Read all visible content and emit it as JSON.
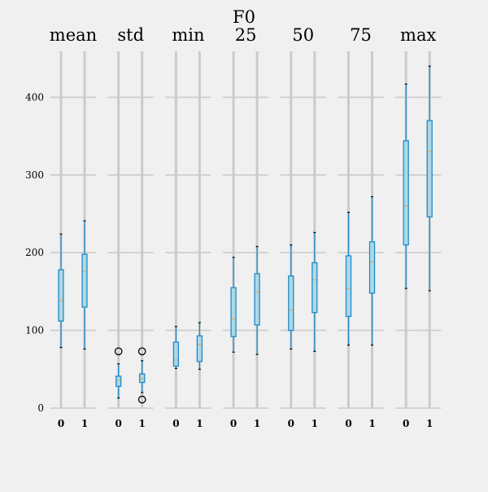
{
  "chart_data": {
    "type": "box",
    "title": "F0",
    "ylim": [
      0,
      460
    ],
    "yticks": [
      0,
      100,
      200,
      300,
      400
    ],
    "grid": true,
    "colors": {
      "background": "#f0f0f0",
      "grid": "#cbcbcb",
      "box": "#1f8ac9",
      "box_fill": "#add8e6",
      "median": "#e5a55a",
      "flier": "#000000"
    },
    "panels": [
      {
        "name": "mean",
        "groups": [
          {
            "label": "0",
            "whisker_low": 78,
            "q1": 112,
            "median": 138,
            "q3": 178,
            "whisker_high": 224,
            "fliers": []
          },
          {
            "label": "1",
            "whisker_low": 76,
            "q1": 130,
            "median": 176,
            "q3": 198,
            "whisker_high": 241,
            "fliers": []
          }
        ]
      },
      {
        "name": "std",
        "groups": [
          {
            "label": "0",
            "whisker_low": 13,
            "q1": 28,
            "median": 36,
            "q3": 41,
            "whisker_high": 57,
            "fliers": [
              73
            ]
          },
          {
            "label": "1",
            "whisker_low": 20,
            "q1": 33,
            "median": 38,
            "q3": 44,
            "whisker_high": 61,
            "fliers": [
              73,
              11
            ]
          }
        ]
      },
      {
        "name": "min",
        "groups": [
          {
            "label": "0",
            "whisker_low": 51,
            "q1": 54,
            "median": 62,
            "q3": 85,
            "whisker_high": 105,
            "fliers": []
          },
          {
            "label": "1",
            "whisker_low": 50,
            "q1": 60,
            "median": 82,
            "q3": 93,
            "whisker_high": 110,
            "fliers": []
          }
        ]
      },
      {
        "name": "25",
        "groups": [
          {
            "label": "0",
            "whisker_low": 72,
            "q1": 92,
            "median": 115,
            "q3": 155,
            "whisker_high": 194,
            "fliers": []
          },
          {
            "label": "1",
            "whisker_low": 69,
            "q1": 107,
            "median": 150,
            "q3": 173,
            "whisker_high": 208,
            "fliers": []
          }
        ]
      },
      {
        "name": "50",
        "groups": [
          {
            "label": "0",
            "whisker_low": 76,
            "q1": 100,
            "median": 126,
            "q3": 170,
            "whisker_high": 210,
            "fliers": []
          },
          {
            "label": "1",
            "whisker_low": 73,
            "q1": 123,
            "median": 165,
            "q3": 187,
            "whisker_high": 226,
            "fliers": []
          }
        ]
      },
      {
        "name": "75",
        "groups": [
          {
            "label": "0",
            "whisker_low": 81,
            "q1": 118,
            "median": 154,
            "q3": 196,
            "whisker_high": 252,
            "fliers": []
          },
          {
            "label": "1",
            "whisker_low": 81,
            "q1": 148,
            "median": 188,
            "q3": 214,
            "whisker_high": 272,
            "fliers": []
          }
        ]
      },
      {
        "name": "max",
        "groups": [
          {
            "label": "0",
            "whisker_low": 154,
            "q1": 210,
            "median": 260,
            "q3": 344,
            "whisker_high": 417,
            "fliers": []
          },
          {
            "label": "1",
            "whisker_low": 151,
            "q1": 246,
            "median": 330,
            "q3": 370,
            "whisker_high": 440,
            "fliers": []
          }
        ]
      }
    ]
  }
}
